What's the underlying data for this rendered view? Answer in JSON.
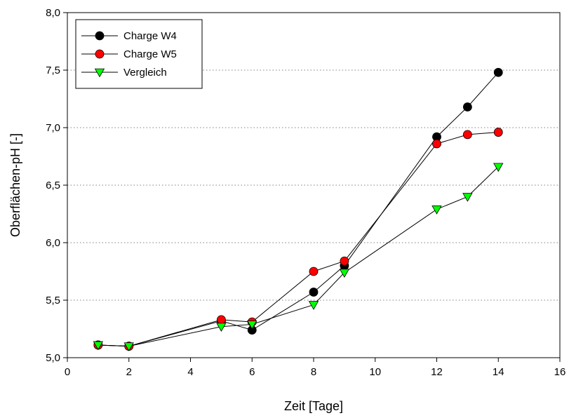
{
  "chart_data": {
    "type": "line",
    "title": "",
    "xlabel": "Zeit [Tage]",
    "ylabel": "Oberflächen-pH [-]",
    "xlim": [
      0,
      16
    ],
    "ylim": [
      5.0,
      8.0
    ],
    "x_ticks": [
      0,
      2,
      4,
      6,
      8,
      10,
      12,
      14,
      16
    ],
    "y_ticks": [
      5.0,
      5.5,
      6.0,
      6.5,
      7.0,
      7.5,
      8.0
    ],
    "x_tick_labels": [
      "0",
      "2",
      "4",
      "6",
      "8",
      "10",
      "12",
      "14",
      "16"
    ],
    "y_tick_labels": [
      "5,0",
      "5,5",
      "6,0",
      "6,5",
      "7,0",
      "7,5",
      "8,0"
    ],
    "grid": "horizontal dotted",
    "legend_position": "top-left",
    "series": [
      {
        "name": "Charge W4",
        "marker": "circle",
        "color": "#000000",
        "points": [
          [
            1,
            5.11
          ],
          [
            2,
            5.1
          ],
          [
            5,
            5.32
          ],
          [
            6,
            5.24
          ],
          [
            8,
            5.57
          ],
          [
            9,
            5.8
          ],
          [
            12,
            6.92
          ],
          [
            13,
            7.18
          ],
          [
            14,
            7.48
          ]
        ]
      },
      {
        "name": "Charge W5",
        "marker": "circle",
        "color": "#ff0000",
        "points": [
          [
            1,
            5.11
          ],
          [
            2,
            5.1
          ],
          [
            5,
            5.33
          ],
          [
            6,
            5.31
          ],
          [
            8,
            5.75
          ],
          [
            9,
            5.84
          ],
          [
            12,
            6.86
          ],
          [
            13,
            6.94
          ],
          [
            14,
            6.96
          ]
        ]
      },
      {
        "name": "Vergleich",
        "marker": "triangle-down",
        "color": "#00ff00",
        "points": [
          [
            1,
            5.11
          ],
          [
            2,
            5.1
          ],
          [
            5,
            5.27
          ],
          [
            6,
            5.29
          ],
          [
            8,
            5.46
          ],
          [
            9,
            5.74
          ],
          [
            12,
            6.29
          ],
          [
            13,
            6.4
          ],
          [
            14,
            6.66
          ]
        ]
      }
    ]
  }
}
